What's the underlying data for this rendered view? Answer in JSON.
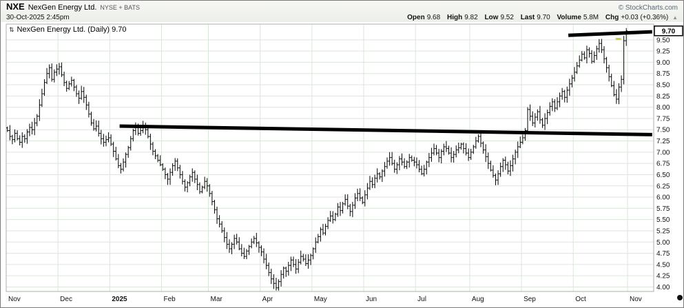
{
  "header": {
    "symbol": "NXE",
    "company": "NexGen Energy Ltd.",
    "exchange": "NYSE + BATS",
    "timestamp": "30-Oct-2025 2:45pm",
    "copyright": "© StockCharts.com",
    "quote": {
      "open_label": "Open",
      "open": "9.68",
      "high_label": "High",
      "high": "9.82",
      "low_label": "Low",
      "low": "9.52",
      "last_label": "Last",
      "last": "9.70",
      "volume_label": "Volume",
      "volume": "5.8M",
      "chg_label": "Chg",
      "chg": "+0.03 (+0.36%)",
      "direction_icon": "▲"
    }
  },
  "chart": {
    "title": "NexGen Energy Ltd. (Daily) 9.70",
    "scale_icon": "⇅"
  },
  "chart_data": {
    "type": "ohlc-bar",
    "title": "NexGen Energy Ltd. (Daily)",
    "xlabel": "",
    "ylabel": "",
    "ylim": [
      3.9,
      9.85
    ],
    "yticks_min": 4.0,
    "yticks_max": 9.5,
    "ytick_step": 0.25,
    "grid": true,
    "grid_color": "#dbe6db",
    "bar_color": "#000000",
    "last": 9.7,
    "x_months": [
      {
        "label": "Nov",
        "bold": false,
        "closes": [
          7.48,
          7.35,
          7.28,
          7.42,
          7.3,
          7.22,
          7.35,
          7.3,
          7.45,
          7.55,
          7.5,
          7.65,
          7.8,
          8.05,
          8.3,
          8.55,
          8.75,
          8.88,
          8.62,
          8.78,
          8.85
        ]
      },
      {
        "label": "Dec",
        "bold": false,
        "closes": [
          8.9,
          8.72,
          8.55,
          8.42,
          8.52,
          8.6,
          8.45,
          8.3,
          8.2,
          8.35,
          8.22,
          8.05,
          7.85,
          7.65,
          7.52,
          7.58,
          7.42,
          7.3,
          7.22,
          7.28,
          7.32
        ]
      },
      {
        "label": "2025",
        "bold": true,
        "closes": [
          7.18,
          7.02,
          6.85,
          6.7,
          6.62,
          6.78,
          6.95,
          7.1,
          7.3,
          7.48,
          7.55,
          7.42,
          7.48,
          7.58,
          7.5,
          7.35,
          7.18,
          7.02,
          6.92,
          6.82,
          6.72
        ]
      },
      {
        "label": "Feb",
        "bold": false,
        "closes": [
          6.62,
          6.5,
          6.4,
          6.55,
          6.7,
          6.8,
          6.65,
          6.5,
          6.35,
          6.22,
          6.32,
          6.45,
          6.55,
          6.4,
          6.28,
          6.12,
          6.22,
          6.35,
          6.25
        ]
      },
      {
        "label": "Mar",
        "bold": false,
        "closes": [
          6.08,
          5.9,
          5.72,
          5.52,
          5.4,
          5.25,
          5.1,
          4.95,
          4.85,
          4.95,
          5.08,
          5.0,
          4.85,
          4.75,
          4.68,
          4.8,
          4.9,
          5.0,
          5.08,
          4.98,
          4.88
        ]
      },
      {
        "label": "Apr",
        "bold": false,
        "closes": [
          4.78,
          4.62,
          4.48,
          4.32,
          4.18,
          4.08,
          3.98,
          4.12,
          4.28,
          4.42,
          4.35,
          4.48,
          4.6,
          4.5,
          4.4,
          4.55,
          4.68,
          4.62,
          4.52,
          4.6,
          4.7
        ]
      },
      {
        "label": "May",
        "bold": false,
        "closes": [
          4.85,
          5.0,
          5.12,
          5.28,
          5.2,
          5.35,
          5.48,
          5.58,
          5.5,
          5.62,
          5.78,
          5.7,
          5.85,
          5.95,
          5.8,
          5.68,
          5.82,
          5.98,
          6.08,
          5.98,
          5.88
        ]
      },
      {
        "label": "Jun",
        "bold": false,
        "closes": [
          6.05,
          6.2,
          6.35,
          6.28,
          6.42,
          6.52,
          6.45,
          6.58,
          6.68,
          6.8,
          6.88,
          6.75,
          6.62,
          6.72,
          6.85,
          6.78,
          6.68,
          6.78,
          6.88,
          6.82,
          6.78
        ]
      },
      {
        "label": "Jul",
        "bold": false,
        "closes": [
          6.72,
          6.62,
          6.52,
          6.62,
          6.78,
          6.88,
          6.98,
          7.08,
          6.98,
          6.88,
          7.02,
          7.12,
          7.08,
          6.98,
          6.88,
          6.95,
          7.05,
          7.1,
          7.18,
          7.08,
          6.98,
          6.88
        ]
      },
      {
        "label": "Aug",
        "bold": false,
        "closes": [
          7.0,
          7.12,
          7.25,
          7.35,
          7.2,
          7.05,
          6.9,
          6.75,
          6.6,
          6.48,
          6.38,
          6.52,
          6.68,
          6.82,
          6.72,
          6.58,
          6.7,
          6.85,
          7.0,
          7.12,
          7.22
        ]
      },
      {
        "label": "Sep",
        "bold": false,
        "closes": [
          7.32,
          7.48,
          7.95,
          7.8,
          7.65,
          7.78,
          7.9,
          7.72,
          7.6,
          7.75,
          7.88,
          8.02,
          8.12,
          7.98,
          8.12,
          8.25,
          8.35,
          8.22,
          8.38,
          8.52,
          8.65
        ]
      },
      {
        "label": "Oct",
        "bold": false,
        "closes": [
          8.78,
          8.92,
          9.05,
          9.18,
          9.1,
          9.28,
          9.2,
          9.02,
          9.15,
          9.3,
          9.42,
          9.28,
          9.08,
          8.88,
          8.68,
          8.48,
          8.28,
          8.18,
          8.45,
          8.62,
          9.48,
          9.7
        ]
      },
      {
        "label": "Nov",
        "bold": false,
        "closes": []
      }
    ],
    "annotations": {
      "trendlines": [
        {
          "name": "horizontal-resistance-line",
          "start_bar": 46,
          "start_price": 7.58,
          "end_bar": 262,
          "end_price": 7.39,
          "width": 5,
          "color": "#000000"
        },
        {
          "name": "upper-resistance-line",
          "start_bar": 228,
          "start_price": 9.6,
          "end_bar": 262,
          "end_price": 9.68,
          "width": 5,
          "color": "#000000"
        }
      ],
      "highlight": {
        "bar": 248,
        "price": 9.52,
        "color": "#cfcf3a"
      }
    }
  }
}
